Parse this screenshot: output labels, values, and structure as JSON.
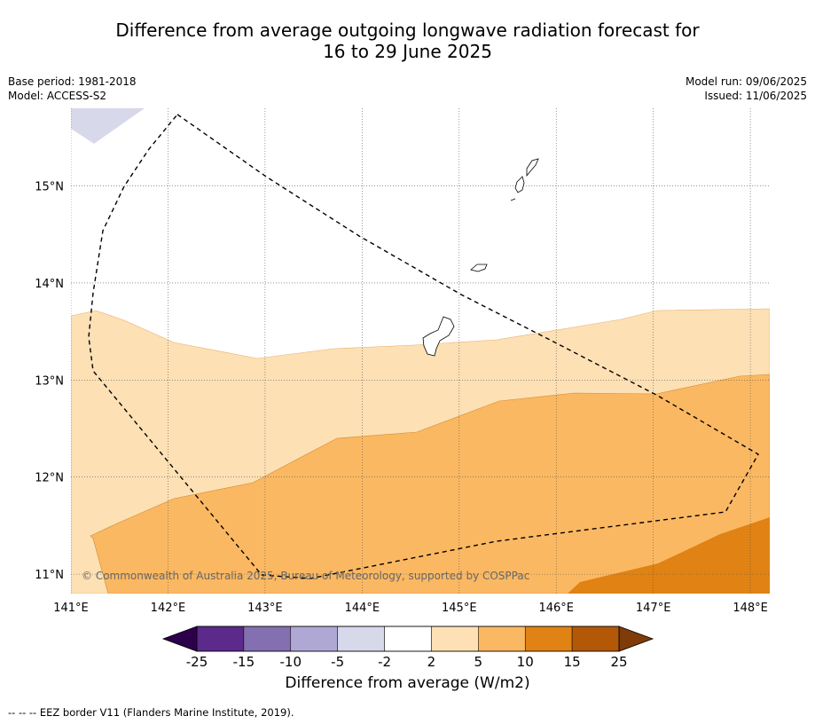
{
  "title_line1": "Difference from average outgoing longwave radiation forecast for",
  "title_line2": "16 to 29 June 2025",
  "base_period": "Base period: 1981-2018",
  "model": "Model: ACCESS-S2",
  "model_run": "Model run: 09/06/2025",
  "issued": "Issued: 11/06/2025",
  "copyright": "© Commonwealth of Australia 2025, Bureau of Meteorology, supported by COSPPac",
  "lon_labels": [
    "141°E",
    "142°E",
    "143°E",
    "144°E",
    "145°E",
    "146°E",
    "147°E",
    "148°E"
  ],
  "lat_labels": [
    "15°N",
    "14°N",
    "13°N",
    "12°N",
    "11°N"
  ],
  "lon_values": [
    141,
    142,
    143,
    144,
    145,
    146,
    147,
    148
  ],
  "lat_values": [
    15,
    14,
    13,
    12,
    11
  ],
  "extent": {
    "lon_min": 141.0,
    "lon_max": 148.2,
    "lat_min": 10.8,
    "lat_max": 15.8
  },
  "colorbar": {
    "title": "Difference from average (W/m2)",
    "tick_labels": [
      "-25",
      "-15",
      "-10",
      "-5",
      "-2",
      "2",
      "5",
      "10",
      "15",
      "25"
    ],
    "colors": [
      "#5b2a8a",
      "#8470b0",
      "#b0a8d4",
      "#d7d8ea",
      "#ffffff",
      "#fde0b4",
      "#fbb862",
      "#e08214",
      "#b35806"
    ],
    "under_color": "#2d004b",
    "over_color": "#7f3b08"
  },
  "footnote": "--  --  -- EEZ border V11 (Flanders Marine Institute, 2019)."
}
